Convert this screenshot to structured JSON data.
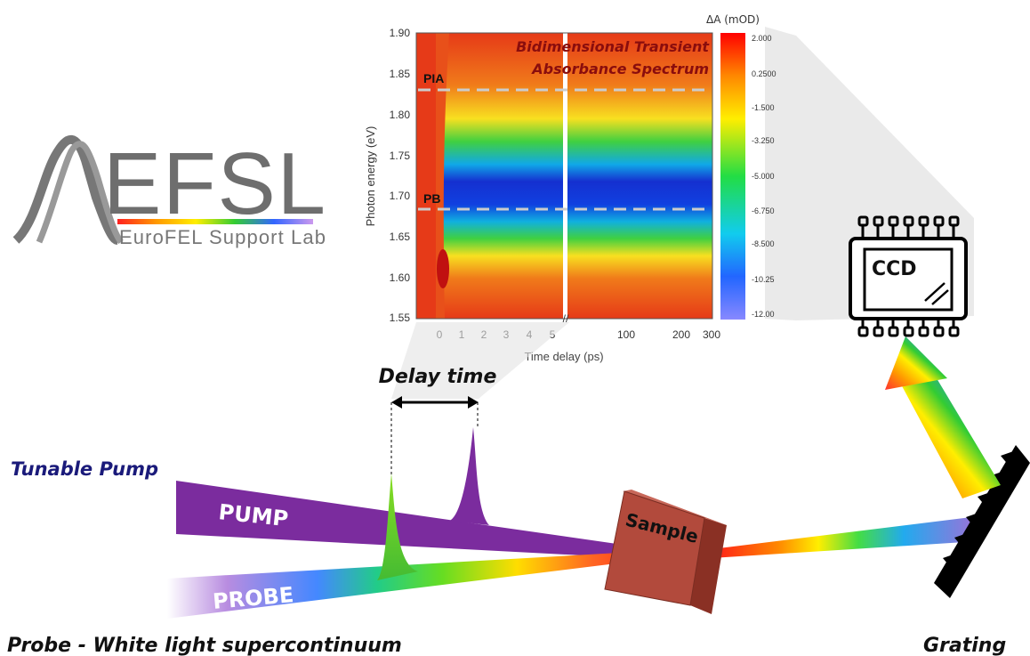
{
  "logo": {
    "brand": "EFSL",
    "subtitle": "EuroFEL Support Lab"
  },
  "spectrum": {
    "title_line1": "Bidimensional Transient",
    "title_line2": "Absorbance Spectrum",
    "y_axis_label": "Photon energy (eV)",
    "x_axis_label": "Time delay (ps)",
    "y_ticks": [
      "1.90",
      "1.85",
      "1.80",
      "1.75",
      "1.70",
      "1.65",
      "1.60",
      "1.55"
    ],
    "x_ticks_left": [
      "0",
      "1",
      "2",
      "3",
      "4",
      "5"
    ],
    "x_ticks_right": [
      "100",
      "200",
      "300"
    ],
    "pia_label": "PIA",
    "pb_label": "PB",
    "colorbar_title": "ΔA (mOD)",
    "colorbar_ticks": [
      "2.000",
      "0.2500",
      "-1.500",
      "-3.250",
      "-5.000",
      "-6.750",
      "-8.500",
      "-10.25",
      "-12.00"
    ]
  },
  "setup": {
    "delay_label": "Delay time",
    "pump_source_label": "Tunable  Pump",
    "pump_beam_label": "PUMP",
    "probe_beam_label": "PROBE",
    "probe_source_label": "Probe  -  White light supercontinuum",
    "sample_label": "Sample",
    "detector_label": "CCD",
    "grating_label": "Grating"
  },
  "colors": {
    "pump": "#7B2C9E",
    "pump_source_text": "#1A1A7A",
    "sample": "#B24A3C",
    "heatmap_bg": "#E83A1A",
    "pb_band": "#1530D0"
  }
}
